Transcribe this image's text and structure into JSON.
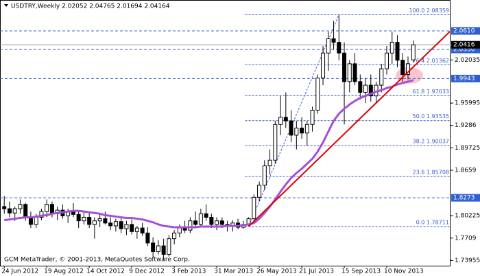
{
  "chart_data": {
    "type": "candlestick",
    "title": "USDTRY,Weekly  2.02052 2.04765 2.01694 2.04164",
    "footer": "GCM MetaTrader, © 2001-2013, MetaQuotes Software Corp.",
    "categories": [
      "24 Jun 2012",
      null,
      null,
      null,
      null,
      null,
      null,
      null,
      "19 Aug 2012",
      null,
      null,
      null,
      null,
      null,
      null,
      null,
      "14 Oct 2012",
      null,
      null,
      null,
      null,
      null,
      null,
      null,
      "9 Dec 2012",
      null,
      null,
      null,
      null,
      null,
      null,
      null,
      "3 Feb 2013",
      null,
      null,
      null,
      null,
      null,
      null,
      null,
      "31 Mar 2013",
      null,
      null,
      null,
      null,
      null,
      null,
      null,
      "26 May 2013",
      null,
      null,
      null,
      null,
      null,
      null,
      null,
      "21 Jul 2013",
      null,
      null,
      null,
      null,
      null,
      null,
      null,
      "15 Sep 2013",
      null,
      null,
      null,
      null,
      null,
      null,
      null,
      "10 Nov 2013",
      null,
      null,
      null,
      null,
      null
    ],
    "ohlc": [
      [
        1.815,
        1.83,
        1.805,
        1.812
      ],
      [
        1.812,
        1.822,
        1.8,
        1.806
      ],
      [
        1.806,
        1.815,
        1.795,
        1.812
      ],
      [
        1.812,
        1.825,
        1.805,
        1.818
      ],
      [
        1.818,
        1.82,
        1.795,
        1.8
      ],
      [
        1.8,
        1.808,
        1.785,
        1.79
      ],
      [
        1.79,
        1.805,
        1.785,
        1.8
      ],
      [
        1.8,
        1.812,
        1.796,
        1.808
      ],
      [
        1.808,
        1.825,
        1.8,
        1.818
      ],
      [
        1.818,
        1.822,
        1.8,
        1.805
      ],
      [
        1.805,
        1.815,
        1.796,
        1.81
      ],
      [
        1.81,
        1.818,
        1.798,
        1.802
      ],
      [
        1.802,
        1.812,
        1.792,
        1.808
      ],
      [
        1.808,
        1.82,
        1.8,
        1.804
      ],
      [
        1.804,
        1.81,
        1.785,
        1.795
      ],
      [
        1.795,
        1.808,
        1.79,
        1.8
      ],
      [
        1.8,
        1.806,
        1.785,
        1.79
      ],
      [
        1.79,
        1.8,
        1.77,
        1.795
      ],
      [
        1.795,
        1.805,
        1.786,
        1.798
      ],
      [
        1.798,
        1.808,
        1.79,
        1.792
      ],
      [
        1.792,
        1.8,
        1.782,
        1.788
      ],
      [
        1.788,
        1.798,
        1.78,
        1.794
      ],
      [
        1.794,
        1.8,
        1.778,
        1.784
      ],
      [
        1.784,
        1.795,
        1.775,
        1.79
      ],
      [
        1.79,
        1.797,
        1.776,
        1.78
      ],
      [
        1.78,
        1.788,
        1.77,
        1.785
      ],
      [
        1.785,
        1.792,
        1.774,
        1.778
      ],
      [
        1.778,
        1.786,
        1.76,
        1.764
      ],
      [
        1.764,
        1.772,
        1.745,
        1.752
      ],
      [
        1.752,
        1.768,
        1.748,
        1.76
      ],
      [
        1.76,
        1.77,
        1.74,
        1.748
      ],
      [
        1.748,
        1.775,
        1.745,
        1.77
      ],
      [
        1.77,
        1.782,
        1.762,
        1.778
      ],
      [
        1.778,
        1.79,
        1.772,
        1.785
      ],
      [
        1.785,
        1.795,
        1.778,
        1.782
      ],
      [
        1.782,
        1.8,
        1.778,
        1.795
      ],
      [
        1.795,
        1.808,
        1.785,
        1.79
      ],
      [
        1.79,
        1.812,
        1.786,
        1.805
      ],
      [
        1.805,
        1.818,
        1.795,
        1.8
      ],
      [
        1.8,
        1.805,
        1.785,
        1.79
      ],
      [
        1.79,
        1.8,
        1.782,
        1.795
      ],
      [
        1.795,
        1.8,
        1.785,
        1.79
      ],
      [
        1.79,
        1.795,
        1.78,
        1.788
      ],
      [
        1.788,
        1.796,
        1.78,
        1.792
      ],
      [
        1.792,
        1.798,
        1.783,
        1.786
      ],
      [
        1.786,
        1.795,
        1.784,
        1.79
      ],
      [
        1.79,
        1.8,
        1.78711,
        1.798
      ],
      [
        1.798,
        1.832,
        1.795,
        1.828
      ],
      [
        1.828,
        1.85,
        1.822,
        1.845
      ],
      [
        1.845,
        1.88,
        1.838,
        1.872
      ],
      [
        1.872,
        1.895,
        1.86,
        1.88
      ],
      [
        1.88,
        1.935,
        1.875,
        1.93
      ],
      [
        1.93,
        1.97,
        1.915,
        1.94
      ],
      [
        1.94,
        1.975,
        1.925,
        1.935
      ],
      [
        1.935,
        1.95,
        1.905,
        1.915
      ],
      [
        1.915,
        1.935,
        1.895,
        1.925
      ],
      [
        1.925,
        1.94,
        1.91,
        1.918
      ],
      [
        1.918,
        1.935,
        1.9,
        1.93
      ],
      [
        1.93,
        1.955,
        1.92,
        1.95
      ],
      [
        1.95,
        2.0,
        1.945,
        1.995
      ],
      [
        1.995,
        2.04,
        1.985,
        2.03
      ],
      [
        2.03,
        2.06,
        2.005,
        2.05
      ],
      [
        2.05,
        2.075,
        2.035,
        2.045
      ],
      [
        2.045,
        2.08359,
        2.02,
        2.03
      ],
      [
        2.03,
        2.045,
        1.93,
        1.99
      ],
      [
        1.99,
        2.02,
        1.975,
        2.015
      ],
      [
        2.015,
        2.03,
        1.985,
        1.99
      ],
      [
        1.99,
        2.0,
        1.965,
        1.975
      ],
      [
        1.975,
        1.995,
        1.96,
        1.985
      ],
      [
        1.985,
        2.0,
        1.962,
        1.97
      ],
      [
        1.97,
        1.99,
        1.96,
        1.985
      ],
      [
        1.985,
        2.015,
        1.975,
        2.008
      ],
      [
        2.008,
        2.04,
        2.0,
        2.03
      ],
      [
        2.03,
        2.06,
        2.015,
        2.045
      ],
      [
        2.045,
        2.055,
        2.01,
        2.02
      ],
      [
        2.02,
        2.03,
        1.99,
        2.0
      ],
      [
        2.0,
        2.025,
        1.993,
        2.015
      ],
      [
        2.02052,
        2.04765,
        2.01694,
        2.04164
      ]
    ],
    "moving_average": {
      "color": "#a64fd6",
      "values": [
        1.796,
        1.797,
        1.798,
        1.799,
        1.8,
        1.8,
        1.801,
        1.802,
        1.803,
        1.805,
        1.806,
        1.807,
        1.808,
        1.809,
        1.809,
        1.808,
        1.807,
        1.806,
        1.805,
        1.803,
        1.802,
        1.801,
        1.8,
        1.799,
        1.799,
        1.798,
        1.797,
        1.795,
        1.793,
        1.79,
        1.788,
        1.787,
        1.786,
        1.786,
        1.786,
        1.786,
        1.786,
        1.787,
        1.787,
        1.787,
        1.787,
        1.787,
        1.788,
        1.788,
        1.788,
        1.789,
        1.79,
        1.792,
        1.798,
        1.806,
        1.815,
        1.825,
        1.836,
        1.846,
        1.855,
        1.862,
        1.868,
        1.875,
        1.882,
        1.892,
        1.905,
        1.92,
        1.935,
        1.945,
        1.952,
        1.958,
        1.963,
        1.967,
        1.97,
        1.973,
        1.976,
        1.978,
        1.981,
        1.983,
        1.986,
        1.988,
        1.99,
        1.992
      ]
    },
    "trendline": {
      "color": "#e00000",
      "x": [
        46,
        84
      ],
      "values": [
        1.78711,
        2.061
      ]
    },
    "fibonacci": {
      "color": "#3a5fc8",
      "x": [
        46,
        63
      ],
      "values": [
        1.78711,
        2.08359
      ],
      "levels": [
        {
          "value": 2.08359,
          "label": "100.0 2.08359"
        },
        {
          "value": 2.01362,
          "label": "76.4 2.01362"
        },
        {
          "value": 1.97033,
          "label": "61.8 1.97033"
        },
        {
          "value": 1.93535,
          "label": "50.0 1.93535"
        },
        {
          "value": 1.90037,
          "label": "38.2 1.90037"
        },
        {
          "value": 1.85708,
          "label": "23.6 1.85708"
        },
        {
          "value": 1.78711,
          "label": "0.0 1.78711"
        }
      ]
    },
    "levels": [
      {
        "value": 2.061,
        "label": "2.0610"
      },
      {
        "value": 2.035,
        "label": "2.0350"
      },
      {
        "value": 1.9943,
        "label": "1.9943"
      },
      {
        "value": 1.8273,
        "label": "1.8273"
      }
    ],
    "bid": {
      "value": 2.0416,
      "label": "2.0416"
    },
    "xlim": [
      -0.8,
      84
    ],
    "ylim": [
      1.7322,
      2.1043
    ],
    "yticks": [
      2.02035,
      1.95995,
      1.9286,
      1.89725,
      1.8659,
      1.80225,
      1.7709,
      1.73955
    ],
    "grid": false
  }
}
